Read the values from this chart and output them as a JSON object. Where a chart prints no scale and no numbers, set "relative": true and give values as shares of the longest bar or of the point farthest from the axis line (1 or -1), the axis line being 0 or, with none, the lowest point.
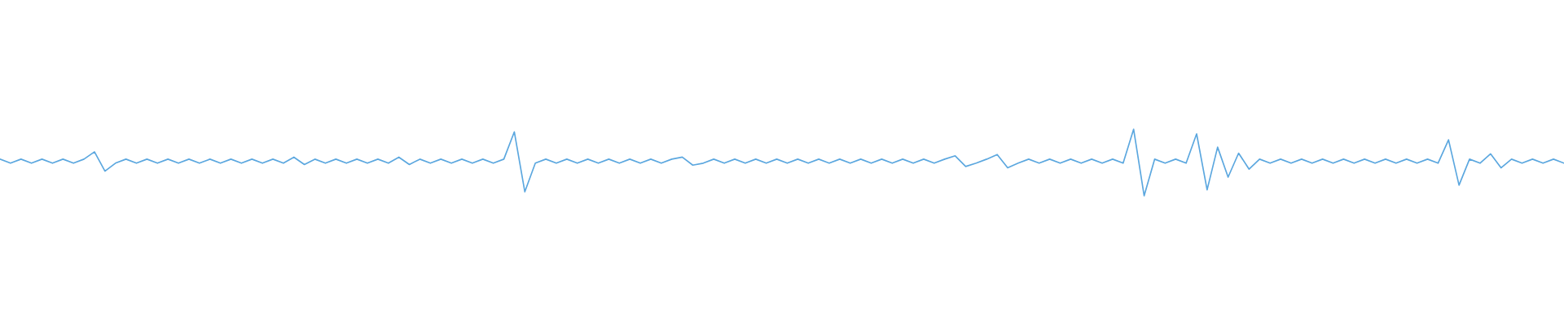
{
  "chart_data": {
    "type": "line",
    "relative": true,
    "categories": [
      null,
      null,
      null,
      null,
      null,
      null,
      null,
      null,
      null,
      null,
      null,
      null,
      null,
      null,
      null,
      null,
      null,
      null,
      null,
      null,
      null,
      null,
      null,
      null,
      null,
      null,
      null,
      null,
      null,
      null,
      null,
      null,
      null,
      null,
      null,
      null,
      null,
      null,
      null,
      null,
      null,
      null,
      null,
      null,
      null,
      null,
      null,
      null,
      null,
      null,
      null,
      null,
      null,
      null,
      null,
      null,
      null,
      null,
      null,
      null,
      null,
      null,
      null,
      null,
      null,
      null,
      null,
      null,
      null,
      null,
      null,
      null,
      null,
      null,
      null,
      null,
      null,
      null,
      null,
      null,
      null,
      null,
      null,
      null,
      null,
      null,
      null,
      null,
      null,
      null,
      null,
      null,
      null,
      null,
      null,
      null,
      null,
      null,
      null,
      null,
      null,
      null,
      null,
      null,
      null,
      null,
      null,
      null,
      null,
      null,
      null,
      null,
      null,
      null,
      null,
      null,
      null,
      null,
      null,
      null,
      null,
      null,
      null,
      null,
      null,
      null,
      null,
      null,
      null,
      null,
      null,
      null,
      null,
      null,
      null,
      null,
      null,
      null,
      null,
      null,
      null,
      null,
      null,
      null,
      null,
      null,
      null,
      null,
      null,
      null
    ],
    "series": [
      {
        "color": "#5ba7df",
        "values": [
          0.55,
          0.49,
          0.55,
          0.49,
          0.55,
          0.49,
          0.55,
          0.49,
          0.55,
          0.66,
          0.37,
          0.49,
          0.55,
          0.49,
          0.55,
          0.49,
          0.55,
          0.49,
          0.55,
          0.49,
          0.55,
          0.49,
          0.55,
          0.49,
          0.55,
          0.49,
          0.55,
          0.49,
          0.58,
          0.47,
          0.55,
          0.49,
          0.55,
          0.49,
          0.55,
          0.49,
          0.55,
          0.49,
          0.58,
          0.47,
          0.55,
          0.49,
          0.55,
          0.49,
          0.55,
          0.49,
          0.55,
          0.49,
          0.55,
          0.96,
          0.06,
          0.49,
          0.55,
          0.49,
          0.55,
          0.49,
          0.55,
          0.49,
          0.55,
          0.49,
          0.55,
          0.49,
          0.55,
          0.49,
          0.55,
          0.58,
          0.46,
          0.49,
          0.55,
          0.49,
          0.55,
          0.49,
          0.55,
          0.49,
          0.55,
          0.49,
          0.55,
          0.49,
          0.55,
          0.49,
          0.55,
          0.49,
          0.55,
          0.49,
          0.55,
          0.49,
          0.55,
          0.49,
          0.55,
          0.49,
          0.55,
          0.6,
          0.44,
          0.49,
          0.55,
          0.62,
          0.42,
          0.49,
          0.55,
          0.49,
          0.55,
          0.49,
          0.55,
          0.49,
          0.55,
          0.49,
          0.55,
          0.49,
          1.0,
          0.0,
          0.55,
          0.49,
          0.55,
          0.49,
          0.93,
          0.09,
          0.73,
          0.28,
          0.64,
          0.4,
          0.55,
          0.49,
          0.55,
          0.49,
          0.55,
          0.49,
          0.55,
          0.49,
          0.55,
          0.49,
          0.55,
          0.49,
          0.55,
          0.49,
          0.55,
          0.49,
          0.55,
          0.49,
          0.84,
          0.16,
          0.55,
          0.49,
          0.63,
          0.42,
          0.55,
          0.49,
          0.55,
          0.49,
          0.55,
          0.49
        ]
      }
    ]
  }
}
